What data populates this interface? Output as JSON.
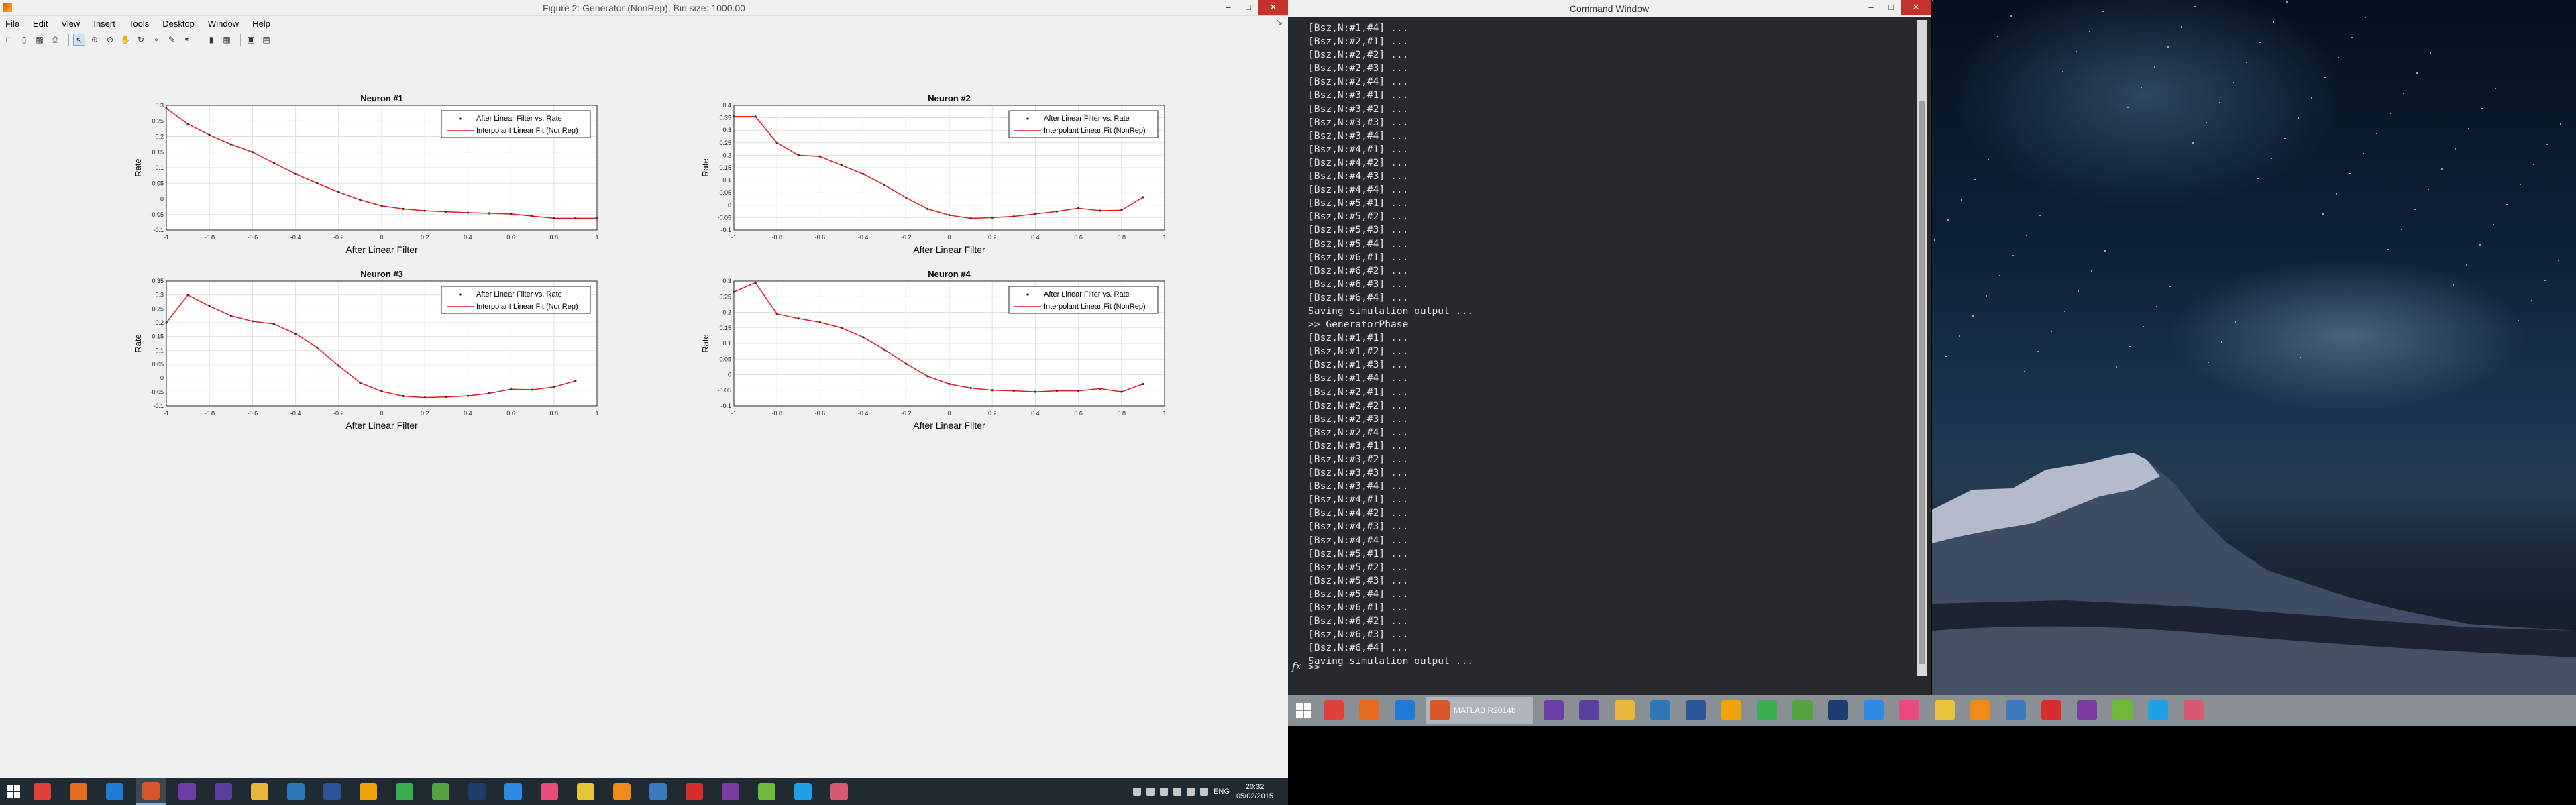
{
  "figure_window": {
    "title": "Figure 2: Generator (NonRep), Bin size: 1000.00",
    "menu": [
      "File",
      "Edit",
      "View",
      "Insert",
      "Tools",
      "Desktop",
      "Window",
      "Help"
    ],
    "menu_underline": [
      "F",
      "E",
      "V",
      "I",
      "T",
      "D",
      "W",
      "H"
    ],
    "toolbar_icons": [
      "new-figure-icon",
      "open-icon",
      "save-icon",
      "print-icon",
      "edit-plot-icon",
      "zoom-in-icon",
      "zoom-out-icon",
      "pan-icon",
      "rotate-icon",
      "data-cursor-icon",
      "brush-icon",
      "link-icon",
      "colorbar-icon",
      "legend-icon",
      "hide-tools-icon",
      "show-tools-icon"
    ]
  },
  "chart_data": [
    {
      "type": "line",
      "title": "Neuron #1",
      "xlabel": "After Linear Filter",
      "ylabel": "Rate",
      "xlim": [
        -1,
        1
      ],
      "ylim": [
        -0.1,
        0.3
      ],
      "xticks": [
        "-1",
        "-0.8",
        "-0.6",
        "-0.4",
        "-0.2",
        "0",
        "0.2",
        "0.4",
        "0.6",
        "0.8",
        "1"
      ],
      "yticks": [
        "-0.1",
        "-0.05",
        "0",
        "0.05",
        "0.1",
        "0.15",
        "0.2",
        "0.25",
        "0.3"
      ],
      "grid": true,
      "legend": "top-right",
      "series": [
        {
          "name": "After Linear Filter vs. Rate",
          "marker": ".",
          "color": "#333333"
        },
        {
          "name": "Interpolant Linear Fit (NonRep)",
          "color": "#e8191b"
        }
      ],
      "x": [
        -1,
        -0.9,
        -0.8,
        -0.7,
        -0.6,
        -0.5,
        -0.4,
        -0.3,
        -0.2,
        -0.1,
        0,
        0.1,
        0.2,
        0.3,
        0.4,
        0.5,
        0.6,
        0.7,
        0.8,
        0.9,
        1
      ],
      "y": [
        0.29,
        0.24,
        0.205,
        0.175,
        0.15,
        0.115,
        0.08,
        0.05,
        0.022,
        -0.003,
        -0.022,
        -0.032,
        -0.038,
        -0.041,
        -0.044,
        -0.046,
        -0.048,
        -0.055,
        -0.062,
        -0.062,
        -0.062
      ]
    },
    {
      "type": "line",
      "title": "Neuron #2",
      "xlabel": "After Linear Filter",
      "ylabel": "Rate",
      "xlim": [
        -1,
        1
      ],
      "ylim": [
        -0.1,
        0.4
      ],
      "xticks": [
        "-1",
        "-0.8",
        "-0.6",
        "-0.4",
        "-0.2",
        "0",
        "0.2",
        "0.4",
        "0.6",
        "0.8",
        "1"
      ],
      "yticks": [
        "-0.1",
        "-0.05",
        "0",
        "0.05",
        "0.1",
        "0.15",
        "0.2",
        "0.25",
        "0.3",
        "0.35",
        "0.4"
      ],
      "grid": true,
      "legend": "top-right",
      "series": [
        {
          "name": "After Linear Filter vs. Rate",
          "marker": ".",
          "color": "#333333"
        },
        {
          "name": "Interpolant Linear Fit (NonRep)",
          "color": "#e8191b"
        }
      ],
      "x": [
        -1,
        -0.9,
        -0.8,
        -0.7,
        -0.6,
        -0.5,
        -0.4,
        -0.3,
        -0.2,
        -0.1,
        0,
        0.1,
        0.2,
        0.3,
        0.4,
        0.5,
        0.6,
        0.7,
        0.8,
        0.9
      ],
      "y": [
        0.355,
        0.355,
        0.25,
        0.2,
        0.195,
        0.16,
        0.125,
        0.08,
        0.03,
        -0.015,
        -0.04,
        -0.053,
        -0.05,
        -0.045,
        -0.035,
        -0.025,
        -0.012,
        -0.022,
        -0.02,
        0.032
      ]
    },
    {
      "type": "line",
      "title": "Neuron #3",
      "xlabel": "After Linear Filter",
      "ylabel": "Rate",
      "xlim": [
        -1,
        1
      ],
      "ylim": [
        -0.1,
        0.35
      ],
      "xticks": [
        "-1",
        "-0.8",
        "-0.6",
        "-0.4",
        "-0.2",
        "0",
        "0.2",
        "0.4",
        "0.6",
        "0.8",
        "1"
      ],
      "yticks": [
        "-0.1",
        "-0.05",
        "0",
        "0.05",
        "0.1",
        "0.15",
        "0.2",
        "0.25",
        "0.3",
        "0.35"
      ],
      "grid": true,
      "legend": "top-right",
      "series": [
        {
          "name": "After Linear Filter vs. Rate",
          "marker": ".",
          "color": "#333333"
        },
        {
          "name": "Interpolant Linear Fit (NonRep)",
          "color": "#e8191b"
        }
      ],
      "x": [
        -1,
        -0.9,
        -0.8,
        -0.7,
        -0.6,
        -0.5,
        -0.4,
        -0.3,
        -0.2,
        -0.1,
        0,
        0.1,
        0.2,
        0.3,
        0.4,
        0.5,
        0.6,
        0.7,
        0.8,
        0.9
      ],
      "y": [
        0.2,
        0.3,
        0.26,
        0.225,
        0.205,
        0.195,
        0.16,
        0.11,
        0.045,
        -0.017,
        -0.048,
        -0.065,
        -0.07,
        -0.068,
        -0.064,
        -0.055,
        -0.04,
        -0.042,
        -0.032,
        -0.01
      ]
    },
    {
      "type": "line",
      "title": "Neuron #4",
      "xlabel": "After Linear Filter",
      "ylabel": "Rate",
      "xlim": [
        -1,
        1
      ],
      "ylim": [
        -0.1,
        0.3
      ],
      "xticks": [
        "-1",
        "-0.8",
        "-0.6",
        "-0.4",
        "-0.2",
        "0",
        "0.2",
        "0.4",
        "0.6",
        "0.8",
        "1"
      ],
      "yticks": [
        "-0.1",
        "-0.05",
        "0",
        "0.05",
        "0.1",
        "0.15",
        "0.2",
        "0.25",
        "0.3"
      ],
      "grid": true,
      "legend": "top-right",
      "series": [
        {
          "name": "After Linear Filter vs. Rate",
          "marker": ".",
          "color": "#333333"
        },
        {
          "name": "Interpolant Linear Fit (NonRep)",
          "color": "#e8191b"
        }
      ],
      "x": [
        -1,
        -0.9,
        -0.8,
        -0.7,
        -0.6,
        -0.5,
        -0.4,
        -0.3,
        -0.2,
        -0.1,
        0,
        0.1,
        0.2,
        0.3,
        0.4,
        0.5,
        0.6,
        0.7,
        0.8,
        0.9
      ],
      "y": [
        0.265,
        0.295,
        0.195,
        0.18,
        0.168,
        0.15,
        0.12,
        0.08,
        0.035,
        -0.005,
        -0.03,
        -0.043,
        -0.05,
        -0.052,
        -0.055,
        -0.052,
        -0.052,
        -0.045,
        -0.055,
        -0.03
      ]
    }
  ],
  "command_window": {
    "title": "Command Window",
    "lines": [
      "[Bsz,N:#1,#4] ...",
      "[Bsz,N:#2,#1] ...",
      "[Bsz,N:#2,#2] ...",
      "[Bsz,N:#2,#3] ...",
      "[Bsz,N:#2,#4] ...",
      "[Bsz,N:#3,#1] ...",
      "[Bsz,N:#3,#2] ...",
      "[Bsz,N:#3,#3] ...",
      "[Bsz,N:#3,#4] ...",
      "[Bsz,N:#4,#1] ...",
      "[Bsz,N:#4,#2] ...",
      "[Bsz,N:#4,#3] ...",
      "[Bsz,N:#4,#4] ...",
      "[Bsz,N:#5,#1] ...",
      "[Bsz,N:#5,#2] ...",
      "[Bsz,N:#5,#3] ...",
      "[Bsz,N:#5,#4] ...",
      "[Bsz,N:#6,#1] ...",
      "[Bsz,N:#6,#2] ...",
      "[Bsz,N:#6,#3] ...",
      "[Bsz,N:#6,#4] ...",
      "Saving simulation output ...",
      ">> GeneratorPhase",
      "[Bsz,N:#1,#1] ...",
      "[Bsz,N:#1,#2] ...",
      "[Bsz,N:#1,#3] ...",
      "[Bsz,N:#1,#4] ...",
      "[Bsz,N:#2,#1] ...",
      "[Bsz,N:#2,#2] ...",
      "[Bsz,N:#2,#3] ...",
      "[Bsz,N:#2,#4] ...",
      "[Bsz,N:#3,#1] ...",
      "[Bsz,N:#3,#2] ...",
      "[Bsz,N:#3,#3] ...",
      "[Bsz,N:#3,#4] ...",
      "[Bsz,N:#4,#1] ...",
      "[Bsz,N:#4,#2] ...",
      "[Bsz,N:#4,#3] ...",
      "[Bsz,N:#4,#4] ...",
      "[Bsz,N:#5,#1] ...",
      "[Bsz,N:#5,#2] ...",
      "[Bsz,N:#5,#3] ...",
      "[Bsz,N:#5,#4] ...",
      "[Bsz,N:#6,#1] ...",
      "[Bsz,N:#6,#2] ...",
      "[Bsz,N:#6,#3] ...",
      "[Bsz,N:#6,#4] ...",
      "Saving simulation output ..."
    ],
    "fx_label": "fx",
    "prompt": ">>"
  },
  "taskbar_secondary": {
    "apps": [
      {
        "icon": "chrome-icon",
        "color": "#e0413a"
      },
      {
        "icon": "firefox-icon",
        "color": "#e66a1e"
      },
      {
        "icon": "internet-explorer-icon",
        "color": "#1f7bd6"
      },
      {
        "icon": "matlab-icon",
        "color": "#d9552a",
        "label": "MATLAB R2014b"
      },
      {
        "icon": "visual-studio-icon",
        "color": "#6a3ea6"
      },
      {
        "icon": "chat-icon",
        "color": "#5b3fa0"
      },
      {
        "icon": "file-explorer-icon",
        "color": "#e9b53a"
      },
      {
        "icon": "picture-viewer-icon",
        "color": "#2e77b8"
      },
      {
        "icon": "word-icon",
        "color": "#2a5699"
      },
      {
        "icon": "g-app-icon",
        "color": "#f0a30a"
      },
      {
        "icon": "recycle-icon",
        "color": "#3cae4e"
      },
      {
        "icon": "cube-app-icon",
        "color": "#57a342"
      },
      {
        "icon": "photoshop-icon",
        "color": "#1c3d6e"
      },
      {
        "icon": "dropbox-icon",
        "color": "#2d8ae5"
      },
      {
        "icon": "itunes-icon",
        "color": "#e94b7c"
      },
      {
        "icon": "key-app-icon",
        "color": "#e9c43a"
      },
      {
        "icon": "vlc-icon",
        "color": "#f08a16"
      },
      {
        "icon": "plane-app-icon",
        "color": "#3b7bbd"
      },
      {
        "icon": "huawei-icon",
        "color": "#d82d2d"
      },
      {
        "icon": "onenote-icon",
        "color": "#7b3ba0"
      },
      {
        "icon": "upload-app-icon",
        "color": "#6fb93a"
      },
      {
        "icon": "skype-icon",
        "color": "#1ea2e5"
      },
      {
        "icon": "paint-icon",
        "color": "#d85a70"
      }
    ]
  },
  "taskbar_main": {
    "apps": [
      {
        "icon": "chrome-icon",
        "color": "#e0413a"
      },
      {
        "icon": "firefox-icon",
        "color": "#e66a1e"
      },
      {
        "icon": "internet-explorer-icon",
        "color": "#1f7bd6"
      },
      {
        "icon": "matlab-icon",
        "color": "#d9552a"
      },
      {
        "icon": "visual-studio-icon",
        "color": "#6a3ea6"
      },
      {
        "icon": "chat-icon",
        "color": "#5b3fa0"
      },
      {
        "icon": "file-explorer-icon",
        "color": "#e9b53a"
      },
      {
        "icon": "picture-viewer-icon",
        "color": "#2e77b8"
      },
      {
        "icon": "word-icon",
        "color": "#2a5699"
      },
      {
        "icon": "g-app-icon",
        "color": "#f0a30a"
      },
      {
        "icon": "recycle-icon",
        "color": "#3cae4e"
      },
      {
        "icon": "cube-app-icon",
        "color": "#57a342"
      },
      {
        "icon": "photoshop-icon",
        "color": "#1c3d6e"
      },
      {
        "icon": "dropbox-icon",
        "color": "#2d8ae5"
      },
      {
        "icon": "itunes-icon",
        "color": "#e94b7c"
      },
      {
        "icon": "key-app-icon",
        "color": "#e9c43a"
      },
      {
        "icon": "vlc-icon",
        "color": "#f08a16"
      },
      {
        "icon": "plane-app-icon",
        "color": "#3b7bbd"
      },
      {
        "icon": "huawei-icon",
        "color": "#d82d2d"
      },
      {
        "icon": "onenote-icon",
        "color": "#7b3ba0"
      },
      {
        "icon": "upload-app-icon",
        "color": "#6fb93a"
      },
      {
        "icon": "skype-icon",
        "color": "#1ea2e5"
      },
      {
        "icon": "paint-icon",
        "color": "#d85a70"
      }
    ],
    "language": "ENG",
    "time": "20:32",
    "date": "05/02/2015"
  }
}
